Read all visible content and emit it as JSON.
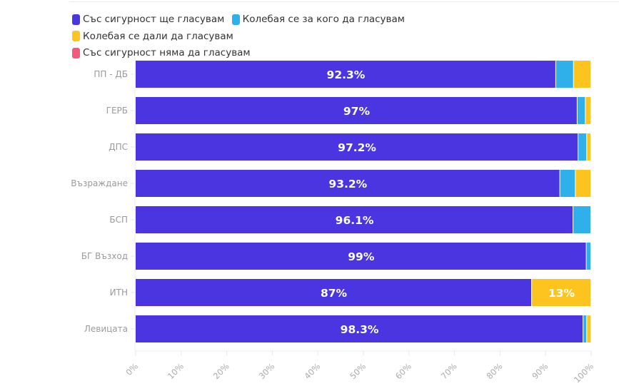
{
  "chart_data": {
    "type": "bar",
    "orientation": "horizontal",
    "stacked": true,
    "normalized": true,
    "title": "",
    "xlabel": "",
    "ylabel": "",
    "xlim": [
      0,
      100
    ],
    "x_ticks": [
      "0%",
      "10%",
      "20%",
      "30%",
      "40%",
      "50%",
      "60%",
      "70%",
      "80%",
      "90%",
      "100%"
    ],
    "legend_position": "top-left",
    "categories": [
      "ПП - ДБ",
      "ГЕРБ",
      "ДПС",
      "Възраждане",
      "БСП",
      "БГ Възход",
      "ИТН",
      "Левицата"
    ],
    "series": [
      {
        "name": "Със сигурност ще гласувам",
        "color": "#4a35e0",
        "values": [
          92.3,
          97,
          97.2,
          93.2,
          96.1,
          99,
          87,
          98.3
        ],
        "labels": [
          "92.3%",
          "97%",
          "97.2%",
          "93.2%",
          "96.1%",
          "99%",
          "87%",
          "98.3%"
        ]
      },
      {
        "name": "Колебая се за кого да гласувам",
        "color": "#2fb0ea",
        "values": [
          3.9,
          1.8,
          1.9,
          3.4,
          3.9,
          1.0,
          0,
          0.8
        ],
        "labels": [
          "",
          "",
          "",
          "",
          "",
          "",
          "",
          ""
        ]
      },
      {
        "name": "Колебая се дали да гласувам",
        "color": "#fdc41f",
        "values": [
          3.8,
          1.2,
          0.9,
          3.4,
          0,
          0,
          13,
          0.9
        ],
        "labels": [
          "",
          "",
          "",
          "",
          "",
          "",
          "13%",
          ""
        ]
      },
      {
        "name": "Със сигурност няма да гласувам",
        "color": "#f25a7e",
        "values": [
          0,
          0,
          0,
          0,
          0,
          0,
          0,
          0
        ],
        "labels": [
          "",
          "",
          "",
          "",
          "",
          "",
          "",
          ""
        ]
      }
    ]
  }
}
